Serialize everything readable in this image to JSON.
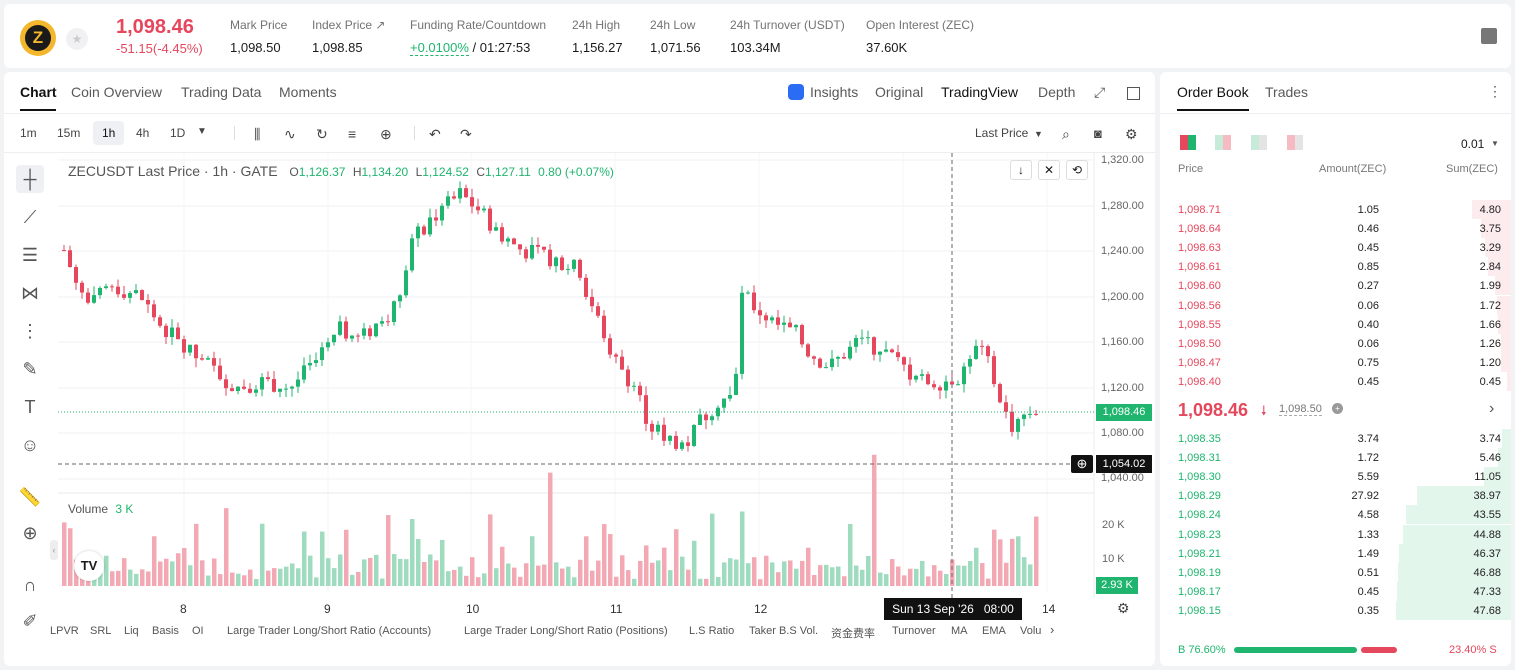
{
  "header": {
    "price": "1,098.46",
    "change": "-51.15(-4.45%)",
    "coin_letter": "Z",
    "stats": [
      {
        "label": "Mark Price",
        "value": "1,098.50"
      },
      {
        "label": "Index Price ↗",
        "value": "1,098.85"
      },
      {
        "label": "Funding Rate/Countdown",
        "value_green": "+0.0100%",
        "value": " / 01:27:53"
      },
      {
        "label": "24h High",
        "value": "1,156.27"
      },
      {
        "label": "24h Low",
        "value": "1,071.56"
      },
      {
        "label": "24h Turnover (USDT)",
        "value": "103.34M"
      },
      {
        "label": "Open Interest (ZEC)",
        "value": "37.60K"
      }
    ]
  },
  "chart_tabs": {
    "chart": "Chart",
    "coin_overview": "Coin Overview",
    "trading_data": "Trading Data",
    "moments": "Moments",
    "insights": "Insights",
    "original": "Original",
    "tradingview": "TradingView",
    "depth": "Depth"
  },
  "toolbar": {
    "intervals": [
      "1m",
      "15m",
      "1h",
      "4h",
      "1D"
    ],
    "active_interval": "1h",
    "last_price": "Last Price"
  },
  "legend": {
    "title": "ZECUSDT Last Price · 1h · GATE",
    "o_label": "O",
    "o": "1,126.37",
    "h_label": "H",
    "h": "1,134.20",
    "l_label": "L",
    "l": "1,124.52",
    "c_label": "C",
    "c": "1,127.11",
    "chg": "0.80 (+0.07%)"
  },
  "price_axis": [
    "1,320.00",
    "1,280.00",
    "1,240.00",
    "1,200.00",
    "1,160.00",
    "1,120.00",
    "1,080.00",
    "1,040.00"
  ],
  "current_price_tag": "1,098.46",
  "crosshair_price_tag": "1,054.02",
  "volume": {
    "label": "Volume",
    "value": "3 K",
    "axis": [
      "20 K",
      "10 K"
    ],
    "tag": "2.93 K"
  },
  "time_axis": [
    "8",
    "9",
    "10",
    "11",
    "12",
    "14"
  ],
  "crosshair_time": "Sun 13 Sep '26   08:00",
  "bottom_indicators": [
    "LPVR",
    "SRL",
    "Liq",
    "Basis",
    "OI",
    "Large Trader Long/Short Ratio (Accounts)",
    "Large Trader Long/Short Ratio (Positions)",
    "L.S Ratio",
    "Taker B.S Vol.",
    "资金费率",
    "Turnover",
    "MA",
    "EMA",
    "Volu"
  ],
  "colors": {
    "up": "#1fb56e",
    "down": "#e5475d",
    "up_light": "#9fdcbf",
    "down_light": "#f3a9b4"
  },
  "orderbook": {
    "tab_book": "Order Book",
    "tab_trades": "Trades",
    "precision": "0.01",
    "col_price": "Price",
    "col_amount": "Amount(ZEC)",
    "col_sum": "Sum(ZEC)",
    "asks": [
      {
        "p": "1,098.71",
        "a": "1.05",
        "s": "4.80",
        "depth": 0.335
      },
      {
        "p": "1,098.64",
        "a": "0.46",
        "s": "3.75",
        "depth": 0.262
      },
      {
        "p": "1,098.63",
        "a": "0.45",
        "s": "3.29",
        "depth": 0.23
      },
      {
        "p": "1,098.61",
        "a": "0.85",
        "s": "2.84",
        "depth": 0.199
      },
      {
        "p": "1,098.60",
        "a": "0.27",
        "s": "1.99",
        "depth": 0.139
      },
      {
        "p": "1,098.56",
        "a": "0.06",
        "s": "1.72",
        "depth": 0.12
      },
      {
        "p": "1,098.55",
        "a": "0.40",
        "s": "1.66",
        "depth": 0.116
      },
      {
        "p": "1,098.50",
        "a": "0.06",
        "s": "1.26",
        "depth": 0.088
      },
      {
        "p": "1,098.47",
        "a": "0.75",
        "s": "1.20",
        "depth": 0.084
      },
      {
        "p": "1,098.40",
        "a": "0.45",
        "s": "0.45",
        "depth": 0.031
      }
    ],
    "last": "1,098.46",
    "mark": "1,098.50",
    "bids": [
      {
        "p": "1,098.35",
        "a": "3.74",
        "s": "3.74",
        "depth": 0.078
      },
      {
        "p": "1,098.31",
        "a": "1.72",
        "s": "5.46",
        "depth": 0.114
      },
      {
        "p": "1,098.30",
        "a": "5.59",
        "s": "11.05",
        "depth": 0.231
      },
      {
        "p": "1,098.29",
        "a": "27.92",
        "s": "38.97",
        "depth": 0.815
      },
      {
        "p": "1,098.24",
        "a": "4.58",
        "s": "43.55",
        "depth": 0.911
      },
      {
        "p": "1,098.23",
        "a": "1.33",
        "s": "44.88",
        "depth": 0.939
      },
      {
        "p": "1,098.21",
        "a": "1.49",
        "s": "46.37",
        "depth": 0.97
      },
      {
        "p": "1,098.19",
        "a": "0.51",
        "s": "46.88",
        "depth": 0.98
      },
      {
        "p": "1,098.17",
        "a": "0.45",
        "s": "47.33",
        "depth": 0.99
      },
      {
        "p": "1,098.15",
        "a": "0.35",
        "s": "47.68",
        "depth": 1.0
      }
    ],
    "buy_ratio": "B 76.60%",
    "sell_ratio": "23.40% S",
    "buy_fraction": 0.766
  }
}
